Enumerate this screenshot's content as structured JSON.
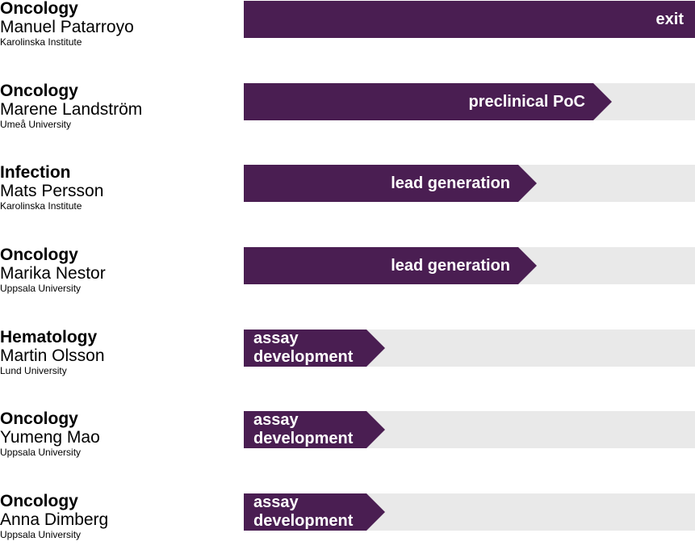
{
  "rows": [
    {
      "area": "Oncology",
      "name": "Manuel Patarroyo",
      "institution": "Karolinska Institute",
      "stage": "exit"
    },
    {
      "area": "Oncology",
      "name": "Marene Landström",
      "institution": "Umeå University",
      "stage": "preclinical PoC"
    },
    {
      "area": "Infection",
      "name": "Mats Persson",
      "institution": "Karolinska Institute",
      "stage": "lead generation"
    },
    {
      "area": "Oncology",
      "name": "Marika Nestor",
      "institution": "Uppsala University",
      "stage": "lead generation"
    },
    {
      "area": "Hematology",
      "name": "Martin Olsson",
      "institution": "Lund University",
      "stage": "assay development"
    },
    {
      "area": "Oncology",
      "name": "Yumeng Mao",
      "institution": "Uppsala University",
      "stage": "assay development"
    },
    {
      "area": "Oncology",
      "name": "Anna Dimberg",
      "institution": "Uppsala University",
      "stage": "assay development"
    }
  ]
}
